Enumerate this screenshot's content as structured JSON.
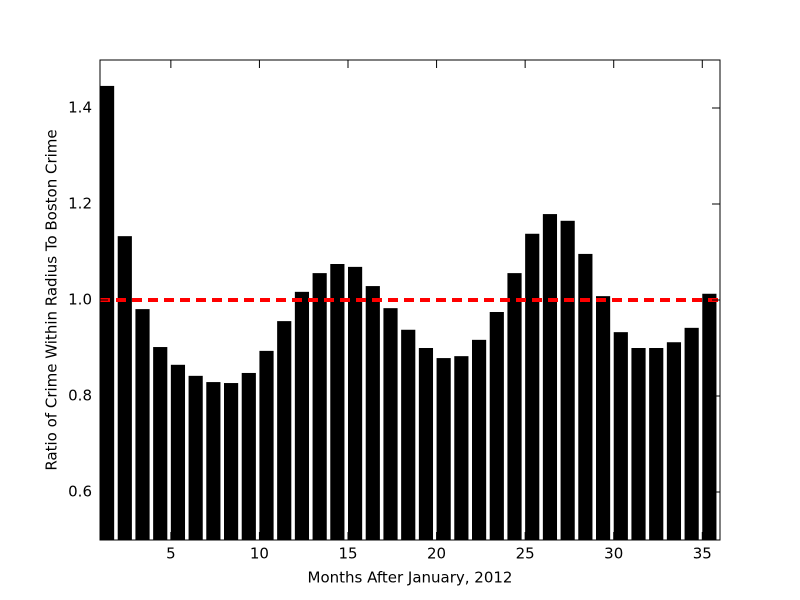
{
  "chart_data": {
    "type": "bar",
    "x_label": "Months After January, 2012",
    "y_label": "Ratio of Crime Within Radius To Boston Crime",
    "x": [
      1,
      2,
      3,
      4,
      5,
      6,
      7,
      8,
      9,
      10,
      11,
      12,
      13,
      14,
      15,
      16,
      17,
      18,
      19,
      20,
      21,
      22,
      23,
      24,
      25,
      26,
      27,
      28,
      29,
      30,
      31,
      32,
      33,
      34,
      35
    ],
    "values": [
      1.446,
      1.133,
      0.981,
      0.902,
      0.865,
      0.842,
      0.829,
      0.827,
      0.848,
      0.894,
      0.956,
      1.017,
      1.056,
      1.075,
      1.069,
      1.029,
      0.983,
      0.938,
      0.9,
      0.879,
      0.883,
      0.917,
      0.975,
      1.056,
      1.138,
      1.179,
      1.165,
      1.096,
      1.008,
      0.933,
      0.9,
      0.9,
      0.912,
      0.942,
      1.013
    ],
    "color": "#000000",
    "xlim": [
      1,
      36
    ],
    "xticks": [
      5,
      10,
      15,
      20,
      25,
      30,
      35
    ],
    "ylim": [
      0.5,
      1.5
    ],
    "yticks": [
      0.6,
      0.8,
      {
        "value": 1,
        "label": "1.0"
      },
      1.2,
      1.4
    ],
    "reference_line": {
      "value": 1,
      "color": "#ff0000"
    }
  }
}
